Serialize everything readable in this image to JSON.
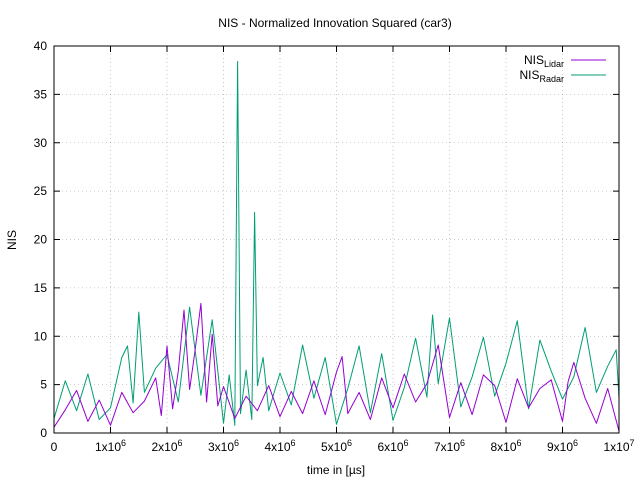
{
  "chart_data": {
    "type": "line",
    "title": "NIS - Normalized Innovation Squared (car3)",
    "xlabel": "time in [µs]",
    "ylabel": "NIS",
    "xlim": [
      0,
      10000000
    ],
    "ylim": [
      0,
      40
    ],
    "x_ticks": [
      {
        "value": 0,
        "label": "0",
        "exp": ""
      },
      {
        "value": 1000000,
        "label": "1x10",
        "exp": "6"
      },
      {
        "value": 2000000,
        "label": "2x10",
        "exp": "6"
      },
      {
        "value": 3000000,
        "label": "3x10",
        "exp": "6"
      },
      {
        "value": 4000000,
        "label": "4x10",
        "exp": "6"
      },
      {
        "value": 5000000,
        "label": "5x10",
        "exp": "6"
      },
      {
        "value": 6000000,
        "label": "6x10",
        "exp": "6"
      },
      {
        "value": 7000000,
        "label": "7x10",
        "exp": "6"
      },
      {
        "value": 8000000,
        "label": "8x10",
        "exp": "6"
      },
      {
        "value": 9000000,
        "label": "9x10",
        "exp": "6"
      },
      {
        "value": 10000000,
        "label": "1x10",
        "exp": "7"
      }
    ],
    "y_ticks": [
      0,
      5,
      10,
      15,
      20,
      25,
      30,
      35,
      40
    ],
    "grid": true,
    "legend_position": "top-right",
    "series": [
      {
        "name": "NIS",
        "name_sub": "Lidar",
        "color": "#9400d3",
        "x": [
          0,
          200000,
          400000,
          600000,
          800000,
          1000000,
          1200000,
          1400000,
          1600000,
          1800000,
          1900000,
          2000000,
          2100000,
          2200000,
          2300000,
          2400000,
          2500000,
          2600000,
          2700000,
          2800000,
          2900000,
          3000000,
          3200000,
          3400000,
          3600000,
          3800000,
          4000000,
          4200000,
          4400000,
          4600000,
          4800000,
          5000000,
          5100000,
          5200000,
          5400000,
          5600000,
          5800000,
          6000000,
          6200000,
          6400000,
          6600000,
          6800000,
          7000000,
          7200000,
          7400000,
          7600000,
          7800000,
          8000000,
          8200000,
          8400000,
          8600000,
          8800000,
          9000000,
          9100000,
          9200000,
          9400000,
          9600000,
          9800000,
          10000000
        ],
        "values": [
          0.6,
          2.4,
          4.4,
          1.2,
          3.4,
          0.8,
          4.2,
          2.1,
          3.3,
          5.7,
          1.8,
          9.0,
          2.5,
          6.4,
          12.7,
          4.5,
          8.7,
          13.4,
          3.2,
          10.2,
          2.8,
          4.8,
          1.5,
          3.8,
          2.3,
          4.9,
          1.7,
          4.3,
          2.0,
          5.4,
          1.9,
          6.3,
          7.9,
          2.0,
          4.2,
          1.4,
          5.7,
          2.6,
          6.1,
          3.2,
          5.1,
          9.1,
          1.6,
          5.2,
          1.9,
          6.0,
          4.9,
          1.1,
          5.6,
          2.6,
          4.6,
          5.5,
          1.2,
          5.3,
          7.3,
          3.6,
          1.0,
          4.6,
          0.2
        ]
      },
      {
        "name": "NIS",
        "name_sub": "Radar",
        "color": "#009e73",
        "x": [
          0,
          200000,
          400000,
          600000,
          800000,
          1000000,
          1200000,
          1300000,
          1400000,
          1500000,
          1600000,
          1800000,
          2000000,
          2200000,
          2400000,
          2600000,
          2800000,
          3000000,
          3100000,
          3200000,
          3250000,
          3300000,
          3400000,
          3500000,
          3550000,
          3600000,
          3700000,
          3800000,
          4000000,
          4200000,
          4400000,
          4600000,
          4800000,
          5000000,
          5200000,
          5400000,
          5600000,
          5800000,
          6000000,
          6200000,
          6400000,
          6600000,
          6700000,
          6800000,
          7000000,
          7200000,
          7400000,
          7600000,
          7800000,
          8000000,
          8200000,
          8400000,
          8600000,
          8800000,
          9000000,
          9200000,
          9400000,
          9600000,
          9800000,
          9950000,
          10000000
        ],
        "values": [
          1.5,
          5.4,
          2.3,
          6.1,
          1.4,
          2.6,
          7.8,
          9.0,
          3.1,
          12.5,
          4.2,
          6.7,
          8.1,
          3.2,
          13.0,
          3.9,
          11.7,
          1.0,
          6.0,
          0.8,
          38.4,
          2.0,
          6.5,
          1.4,
          22.8,
          4.9,
          7.8,
          2.3,
          6.2,
          2.9,
          9.1,
          3.6,
          7.8,
          0.9,
          4.6,
          9.0,
          2.1,
          8.2,
          1.3,
          4.7,
          9.8,
          3.7,
          12.2,
          5.1,
          11.9,
          2.7,
          5.8,
          9.9,
          3.8,
          7.2,
          11.6,
          2.5,
          9.6,
          6.4,
          3.5,
          5.8,
          10.9,
          4.2,
          6.9,
          8.6,
          3.6
        ]
      }
    ]
  }
}
